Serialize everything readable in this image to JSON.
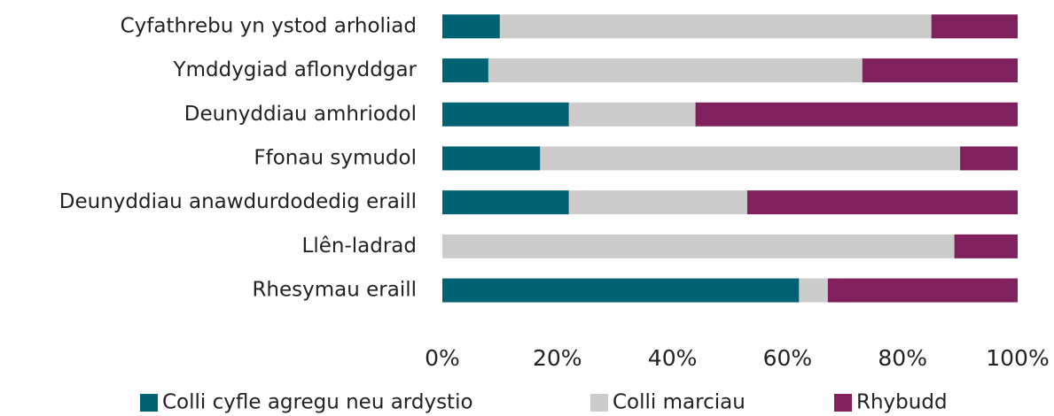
{
  "chart_data": {
    "type": "stacked_bar_horizontal",
    "categories": [
      "Cyfathrebu yn ystod arholiad",
      "Ymddygiad aflonyddgar",
      "Deunyddiau amhriodol",
      "Ffonau symudol",
      "Deunyddiau anawdurdodedig eraill",
      "Llên-ladrad",
      "Rhesymau eraill"
    ],
    "series": [
      {
        "name": "Colli cyfle agregu neu ardystio",
        "color": "#006272",
        "values": [
          10,
          8,
          22,
          17,
          22,
          0,
          62
        ]
      },
      {
        "name": "Colli marciau",
        "color": "#cccccc",
        "values": [
          75,
          65,
          22,
          73,
          31,
          89,
          5
        ]
      },
      {
        "name": "Rhybudd",
        "color": "#80205c",
        "values": [
          15,
          27,
          56,
          10,
          47,
          11,
          33
        ]
      }
    ],
    "xlim": [
      0,
      100
    ],
    "xticks": [
      {
        "value": 0,
        "label": "0%"
      },
      {
        "value": 20,
        "label": "20%"
      },
      {
        "value": 40,
        "label": "40%"
      },
      {
        "value": 60,
        "label": "60%"
      },
      {
        "value": 80,
        "label": "80%"
      },
      {
        "value": 100,
        "label": "100%"
      }
    ],
    "grid": false,
    "legend": "bottom"
  }
}
